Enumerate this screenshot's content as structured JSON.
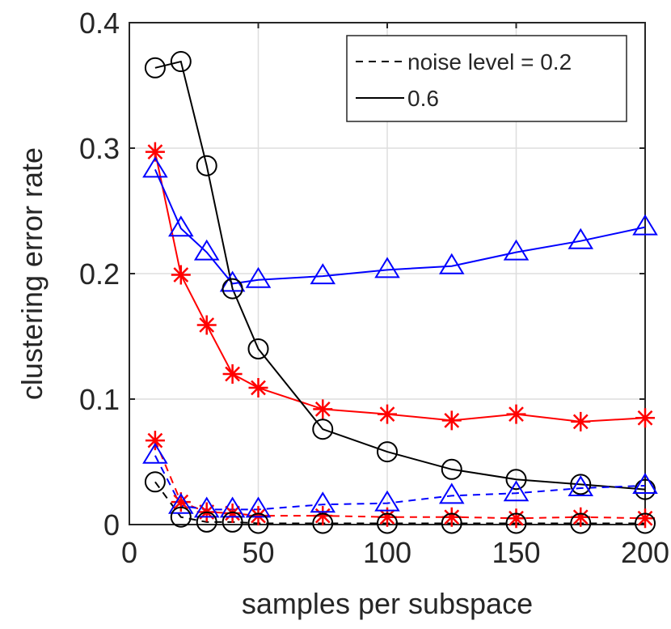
{
  "chart_data": {
    "type": "line",
    "title": "",
    "xlabel": "samples per subspace",
    "ylabel": "clustering error rate",
    "xlim": [
      0,
      200
    ],
    "ylim": [
      0,
      0.4
    ],
    "xticks": [
      0,
      50,
      100,
      150,
      200
    ],
    "yticks": [
      0,
      0.1,
      0.2,
      0.3,
      0.4
    ],
    "xtick_labels": [
      "0",
      "50",
      "100",
      "150",
      "200"
    ],
    "ytick_labels": [
      "0",
      "0.1",
      "0.2",
      "0.3",
      "0.4"
    ],
    "grid": true,
    "legend_position": "top-right",
    "legend": [
      {
        "label": "noise level = 0.2",
        "style": "dashed"
      },
      {
        "label": "0.6",
        "style": "solid"
      }
    ],
    "x": [
      10,
      20,
      30,
      40,
      50,
      75,
      100,
      125,
      150,
      175,
      200
    ],
    "series": [
      {
        "color": "#ff0000",
        "marker": "star",
        "style": "solid",
        "values": [
          0.297,
          0.199,
          0.159,
          0.12,
          0.109,
          0.092,
          0.088,
          0.083,
          0.088,
          0.082,
          0.085
        ]
      },
      {
        "color": "#0000ff",
        "marker": "triangle",
        "style": "solid",
        "values": [
          0.283,
          0.236,
          0.217,
          0.192,
          0.195,
          0.198,
          0.203,
          0.206,
          0.217,
          0.226,
          0.237
        ]
      },
      {
        "color": "#000000",
        "marker": "circle",
        "style": "solid",
        "values": [
          0.364,
          0.369,
          0.286,
          0.188,
          0.14,
          0.076,
          0.058,
          0.044,
          0.036,
          0.032,
          0.028
        ]
      },
      {
        "color": "#ff0000",
        "marker": "star",
        "style": "dashed",
        "values": [
          0.067,
          0.018,
          0.01,
          0.009,
          0.007,
          0.007,
          0.006,
          0.006,
          0.005,
          0.006,
          0.005
        ]
      },
      {
        "color": "#0000ff",
        "marker": "triangle",
        "style": "dashed",
        "values": [
          0.055,
          0.015,
          0.012,
          0.012,
          0.012,
          0.016,
          0.017,
          0.023,
          0.025,
          0.029,
          0.031
        ]
      },
      {
        "color": "#000000",
        "marker": "circle",
        "style": "dashed",
        "values": [
          0.034,
          0.006,
          0.002,
          0.002,
          0.001,
          0.001,
          0.001,
          0.001,
          0.001,
          0.001,
          0.001
        ]
      }
    ]
  }
}
